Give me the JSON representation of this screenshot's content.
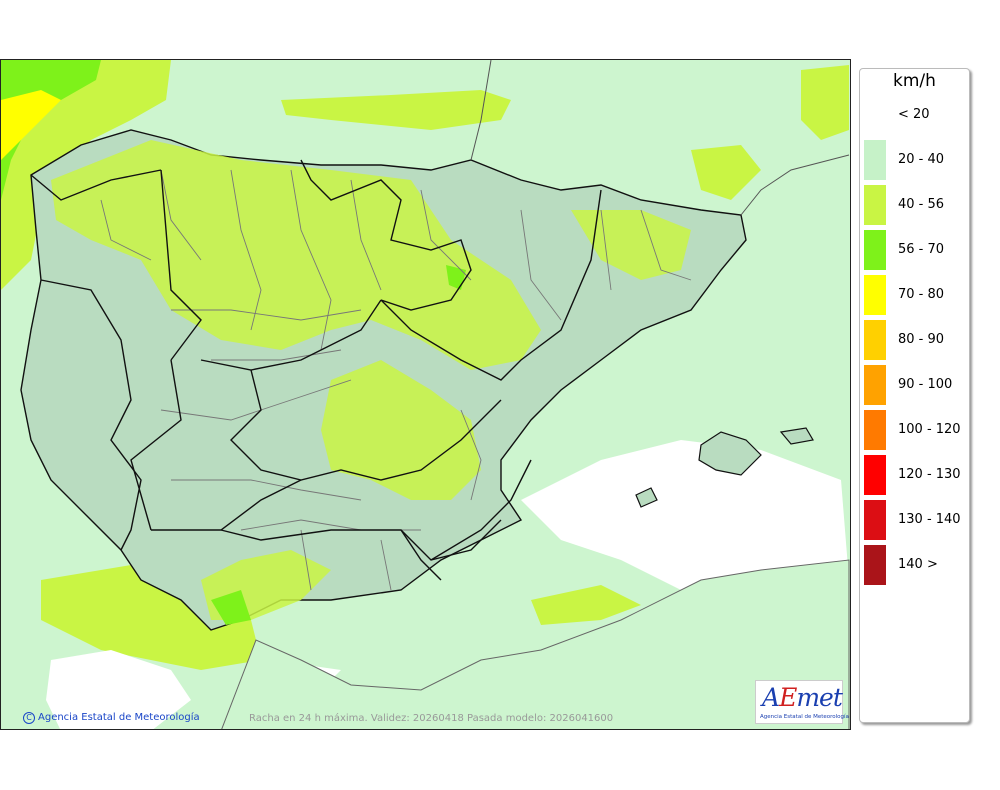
{
  "legend": {
    "unit": "km/h",
    "classes": [
      {
        "label": "< 20",
        "color": ""
      },
      {
        "label": "20 - 40",
        "color": "#c6f2c8"
      },
      {
        "label": "40 - 56",
        "color": "#c9f544"
      },
      {
        "label": "56 - 70",
        "color": "#7ef21a"
      },
      {
        "label": "70 - 80",
        "color": "#ffff00"
      },
      {
        "label": "80 - 90",
        "color": "#ffd000"
      },
      {
        "label": "90 - 100",
        "color": "#ffa200"
      },
      {
        "label": "100 - 120",
        "color": "#ff7a00"
      },
      {
        "label": "120 - 130",
        "color": "#ff0000"
      },
      {
        "label": "130 - 140",
        "color": "#dc0e14"
      },
      {
        "label": "140 >",
        "color": "#aa1419"
      }
    ]
  },
  "footer": {
    "copyright_symbol": "C",
    "copyright": "Agencia Estatal de Meteorología",
    "validity": "Racha en 24 h máxima. Validez: 20260418 Pasada modelo: 2026041600"
  },
  "logo": {
    "text_a": "A",
    "text_e": "E",
    "text_rest": "met",
    "subtitle": "Agencia Estatal de Meteorología"
  },
  "colors": {
    "sea_band": "#c6f2c8",
    "band_20_40": "#c6f2c8",
    "band_40_56": "#c9f544",
    "band_56_70": "#7ef21a",
    "band_70_80": "#ffff00",
    "terrain": "#b9dcc0",
    "border": "#111111",
    "province_line": "#777777"
  }
}
